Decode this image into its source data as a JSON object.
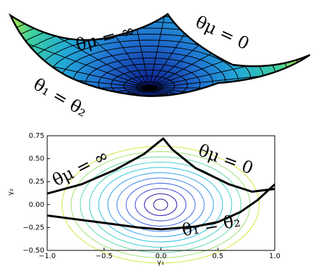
{
  "chart_data": {
    "type": "line",
    "annotations": {
      "theta_mu_inf": "θμ = ∞",
      "theta_mu_zero": "θμ = 0",
      "theta_equal": "θ₁ = θ₂"
    },
    "xlabel": "γ₁",
    "ylabel": "γ₂",
    "xlim": [
      -1.0,
      1.0
    ],
    "ylim": [
      -0.5,
      0.75
    ],
    "xticks": [
      {
        "value": -1.0,
        "label": "−1.0"
      },
      {
        "value": -0.5,
        "label": "−0.5"
      },
      {
        "value": 0.0,
        "label": "0.0"
      },
      {
        "value": 0.5,
        "label": "0.5"
      },
      {
        "value": 1.0,
        "label": "1.0"
      }
    ],
    "yticks": [
      {
        "value": -0.5,
        "label": "−0.50"
      },
      {
        "value": -0.25,
        "label": "−0.25"
      },
      {
        "value": 0.0,
        "label": "0.00"
      },
      {
        "value": 0.25,
        "label": "0.25"
      },
      {
        "value": 0.5,
        "label": "0.50"
      },
      {
        "value": 0.75,
        "label": "0.75"
      }
    ],
    "series": [
      {
        "color": "#000000",
        "x": [
          -1.0,
          -0.7,
          -0.4,
          -0.15,
          0.02,
          0.1,
          0.3,
          0.6,
          0.8,
          1.0
        ],
        "values": [
          0.12,
          0.22,
          0.38,
          0.55,
          0.72,
          0.6,
          0.4,
          0.22,
          0.14,
          0.17
        ]
      },
      {
        "color": "#000000",
        "x": [
          -1.0,
          -0.5,
          -0.2,
          0.0,
          0.3,
          0.5,
          0.7,
          0.85,
          1.0
        ],
        "values": [
          -0.12,
          -0.2,
          -0.25,
          -0.27,
          -0.24,
          -0.19,
          -0.08,
          0.05,
          0.22
        ]
      }
    ]
  }
}
